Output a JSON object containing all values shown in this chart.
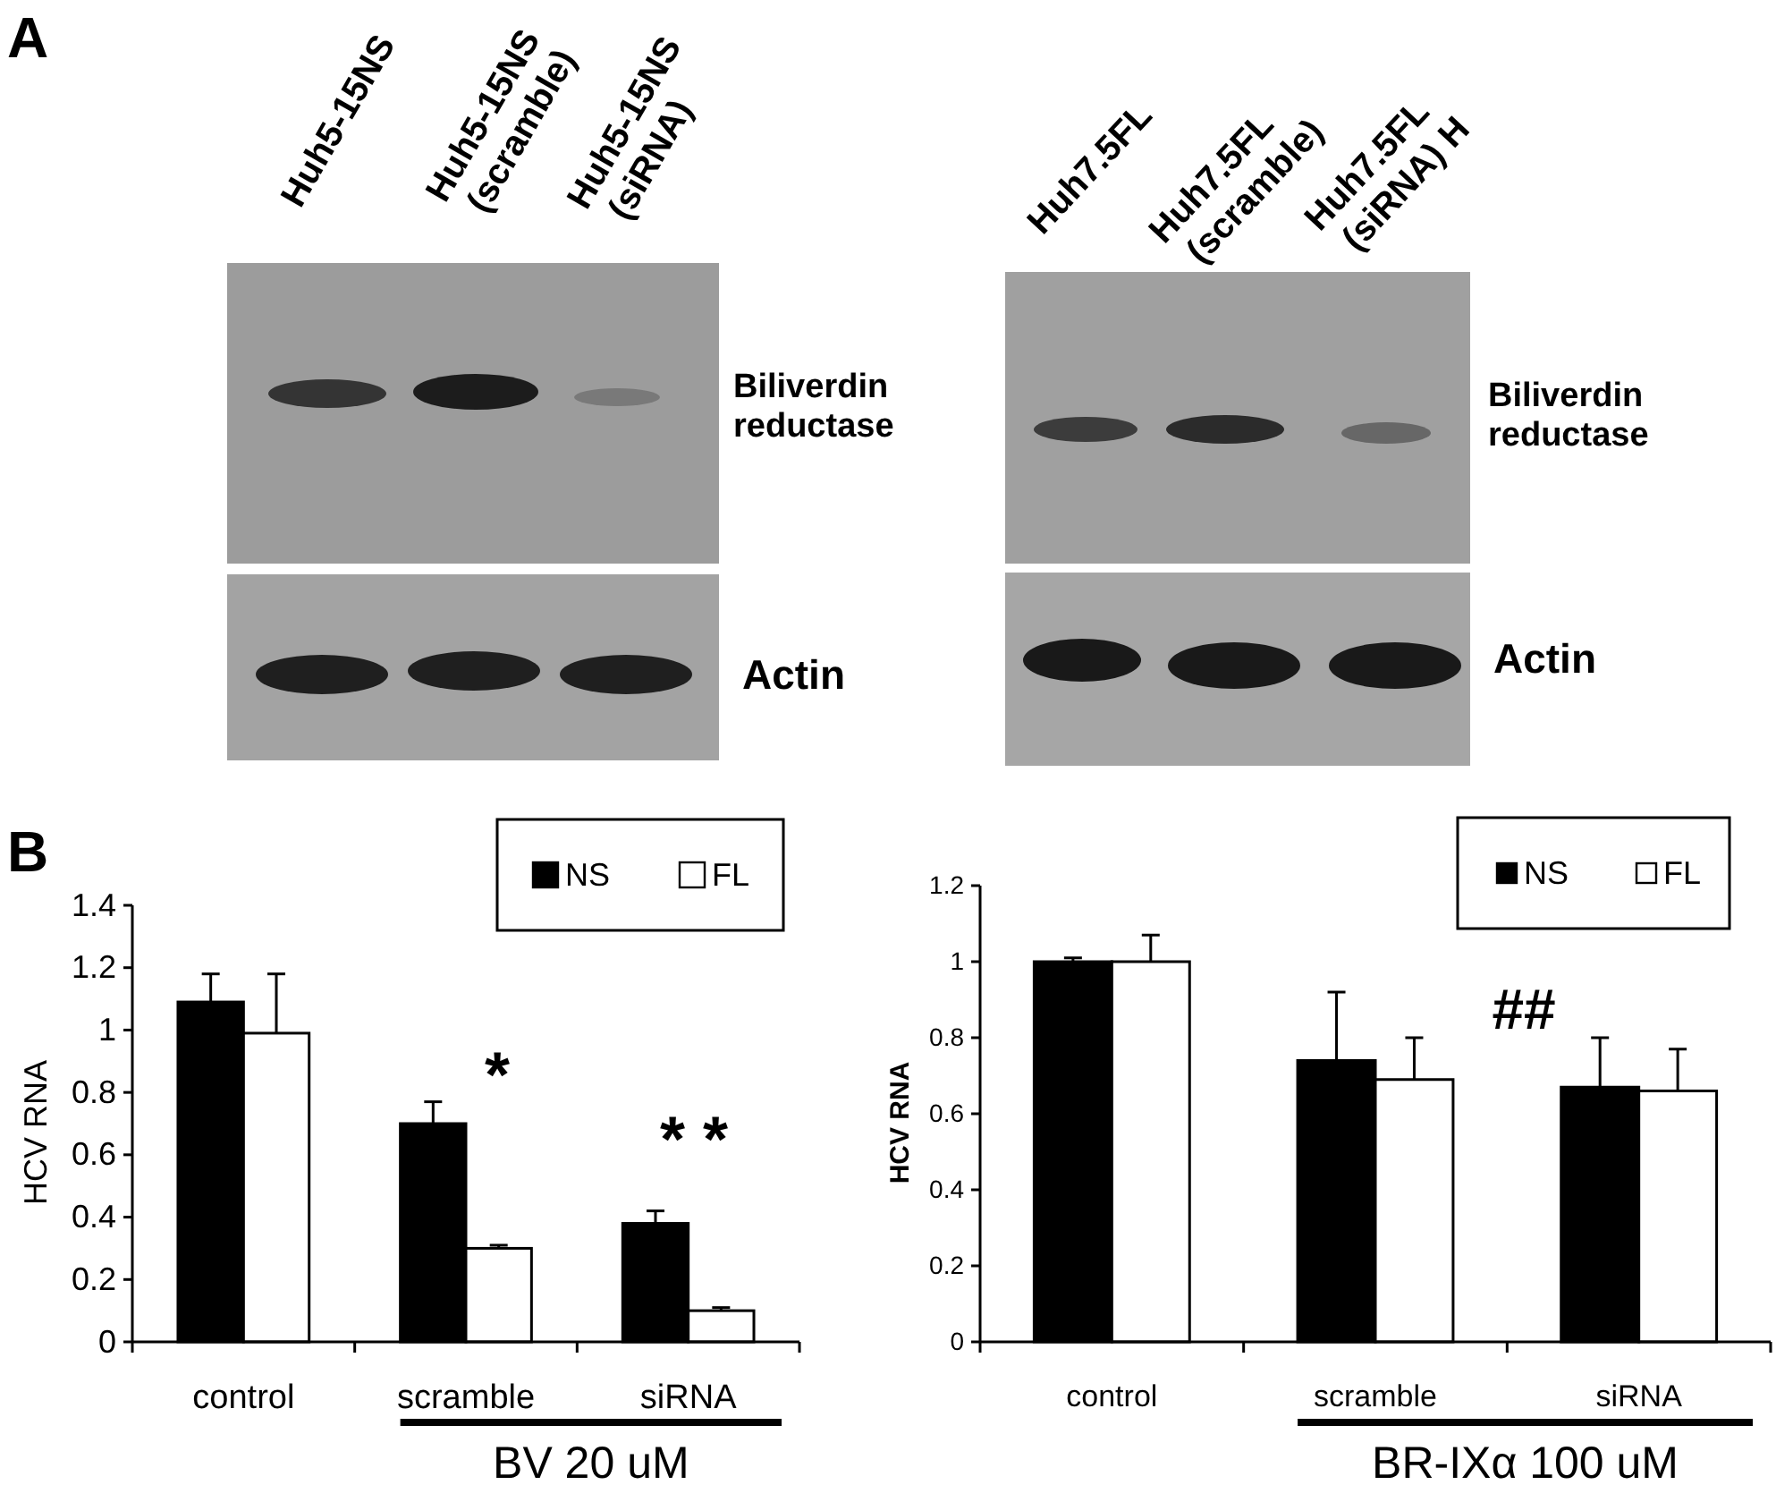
{
  "chart_data": [
    {
      "type": "other",
      "annotations": [
        "A",
        "Huh5-15NS",
        "Huh5-15NS (scramble)",
        "Huh5-15NS (siRNA)",
        "Biliverdin reductase",
        "Actin",
        "Huh7.5FL",
        "Huh7.5FL (scramble)",
        "Huh7.5FL (siRNA) H",
        "Biliverdin reductase",
        "Actin"
      ]
    },
    {
      "type": "bar",
      "ylabel": "HCV RNA",
      "categories": [
        "control",
        "scramble",
        "siRNA"
      ],
      "series": [
        {
          "name": "NS",
          "color": "#000000",
          "values": [
            1.09,
            0.7,
            0.38
          ],
          "errors": [
            [
              1.09,
              1.18
            ],
            [
              0.7,
              0.77
            ],
            [
              0.38,
              0.42
            ]
          ]
        },
        {
          "name": "FL",
          "color": "#ffffff",
          "values": [
            0.99,
            0.3,
            0.1
          ],
          "errors": [
            [
              0.99,
              1.18
            ],
            [
              0.3,
              0.31
            ],
            [
              0.1,
              0.11
            ]
          ]
        }
      ],
      "ylim": [
        0,
        1.4
      ],
      "yticks": [
        0,
        0.2,
        0.4,
        0.6,
        0.8,
        1,
        1.2,
        1.4
      ],
      "legend": "top right",
      "annotations": [
        "B",
        "*",
        "* *",
        "BV 20 uM"
      ]
    },
    {
      "type": "bar",
      "ylabel": "HCV RNA",
      "categories": [
        "control",
        "scramble",
        "siRNA"
      ],
      "series": [
        {
          "name": "NS",
          "color": "#000000",
          "values": [
            1.0,
            0.74,
            0.67
          ],
          "errors": [
            [
              1.0,
              1.01
            ],
            [
              0.74,
              0.92
            ],
            [
              0.67,
              0.8
            ]
          ]
        },
        {
          "name": "FL",
          "color": "#ffffff",
          "values": [
            1.0,
            0.69,
            0.66
          ],
          "errors": [
            [
              1.0,
              1.07
            ],
            [
              0.69,
              0.8
            ],
            [
              0.66,
              0.77
            ]
          ]
        }
      ],
      "ylim": [
        0,
        1.2
      ],
      "yticks": [
        0,
        0.2,
        0.4,
        0.6,
        0.8,
        1,
        1.2
      ],
      "legend": "top right",
      "annotations": [
        "##",
        "BR-IXα 100 uM"
      ]
    }
  ]
}
